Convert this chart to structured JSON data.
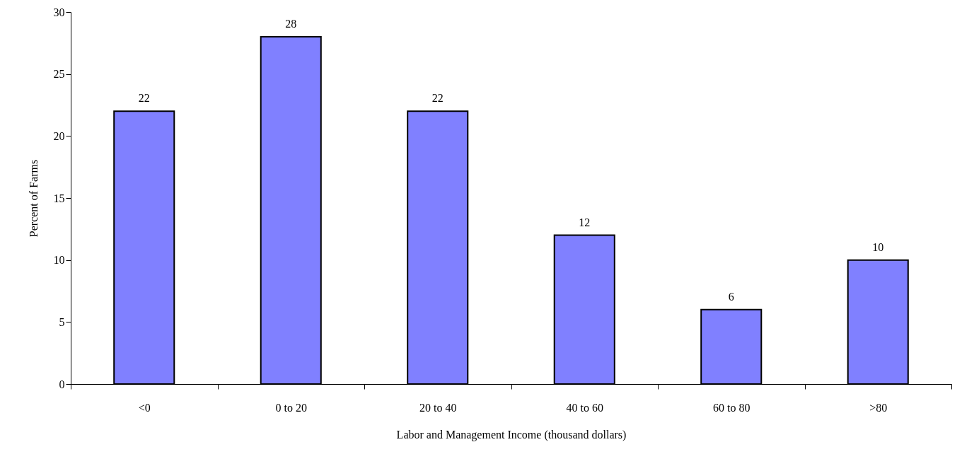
{
  "chart_data": {
    "type": "bar",
    "xlabel": "Labor and Management Income (thousand dollars)",
    "ylabel": "Percent of Farms",
    "categories": [
      "<0",
      "0 to 20",
      "20 to 40",
      "40 to 60",
      "60 to 80",
      ">80"
    ],
    "values": [
      22,
      28,
      22,
      12,
      6,
      10
    ],
    "color": "#8080ff",
    "ylim": [
      0,
      30
    ],
    "yticks": [
      0,
      5,
      10,
      15,
      20,
      25,
      30
    ],
    "grid": false,
    "data_labels": true
  }
}
